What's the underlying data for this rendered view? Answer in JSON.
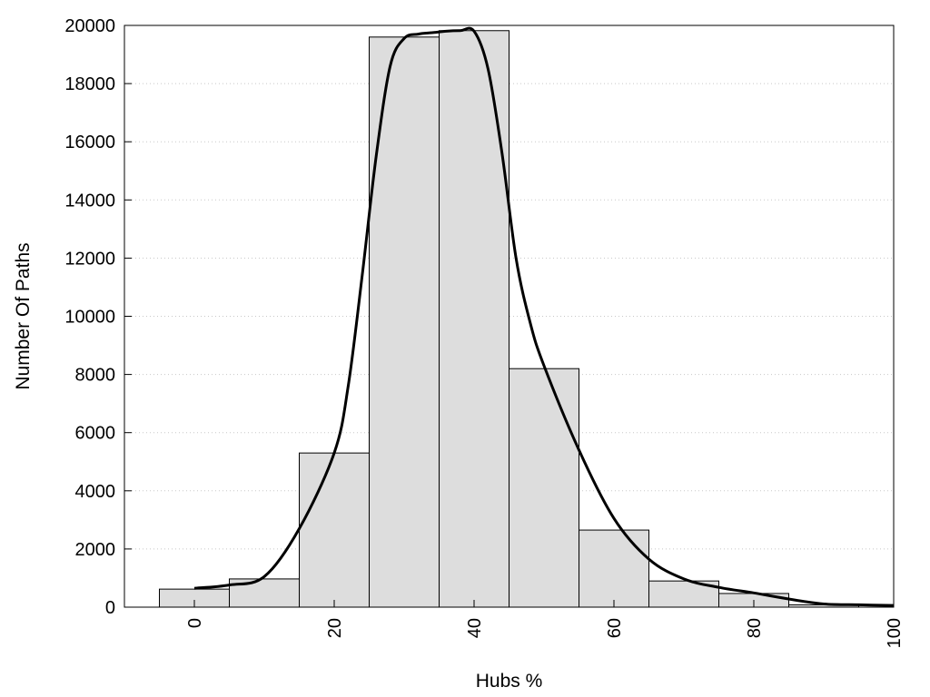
{
  "chart_data": {
    "type": "bar",
    "title": "",
    "xlabel": "Hubs %",
    "ylabel": "Number Of Paths",
    "xlim": [
      -10,
      100
    ],
    "ylim": [
      0,
      20000
    ],
    "x_ticks": [
      "0",
      "20",
      "40",
      "60",
      "80",
      "100"
    ],
    "y_ticks": [
      "0",
      "2000",
      "4000",
      "6000",
      "8000",
      "10000",
      "12000",
      "14000",
      "16000",
      "18000",
      "20000"
    ],
    "grid": "horizontal dotted",
    "bar_width": 10,
    "categories": [
      0,
      10,
      20,
      30,
      40,
      50,
      60,
      70,
      80,
      90
    ],
    "values": [
      620,
      970,
      5300,
      19600,
      19820,
      8200,
      2650,
      900,
      470,
      80
    ],
    "curve": {
      "x": [
        0,
        5,
        10,
        15,
        20,
        22,
        24,
        26,
        28,
        30,
        32,
        34,
        36,
        38,
        40,
        42,
        44,
        46,
        48,
        50,
        55,
        60,
        65,
        70,
        75,
        80,
        85,
        90,
        95,
        100
      ],
      "y": [
        650,
        760,
        1050,
        2700,
        5300,
        7600,
        11400,
        15500,
        18600,
        19550,
        19700,
        19750,
        19800,
        19820,
        19800,
        18500,
        15600,
        12000,
        9800,
        8300,
        5400,
        3050,
        1650,
        970,
        680,
        490,
        280,
        110,
        80,
        60
      ]
    },
    "colors": {
      "bar_fill": "#dddddd",
      "bar_stroke": "#000000",
      "curve": "#000000",
      "grid": "#c8c8c8"
    }
  }
}
